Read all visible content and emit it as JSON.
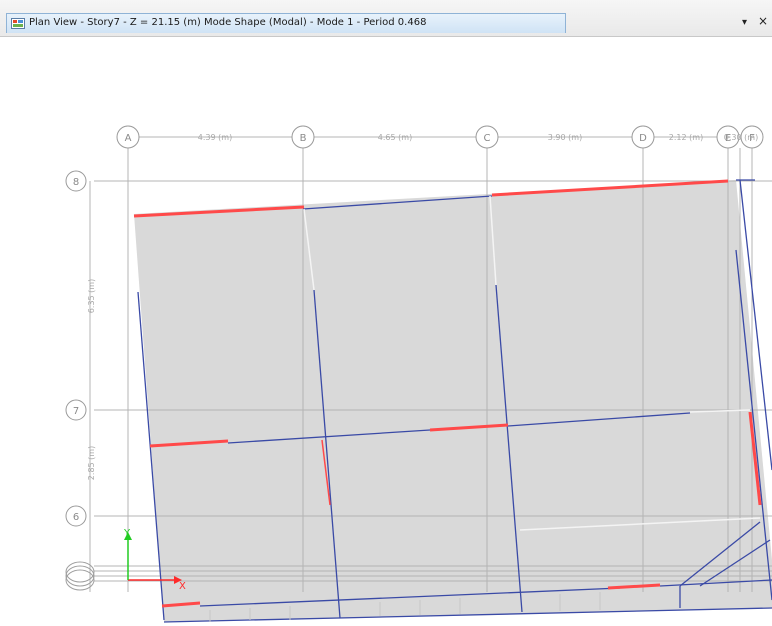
{
  "window": {
    "title": "Plan View - Story7 - Z = 21.15 (m)  Mode Shape (Modal) - Mode 1 - Period 0.468",
    "icon": "plan-view-icon",
    "dropdown_icon": "chevron-down-icon",
    "close_icon": "close-icon"
  },
  "grid": {
    "columns": [
      {
        "label": "A"
      },
      {
        "label": "B"
      },
      {
        "label": "C"
      },
      {
        "label": "D"
      },
      {
        "label": "E"
      },
      {
        "label": "F"
      }
    ],
    "rows": [
      {
        "label": "8"
      },
      {
        "label": "7"
      },
      {
        "label": "6"
      }
    ],
    "column_dimensions": [
      "4.39 (m)",
      "4.65 (m)",
      "3.90 (m)",
      "2.12 (m)",
      "0.30 (m)"
    ],
    "row_dimensions": [
      "6.35 (m)",
      "2.85 (m)"
    ]
  },
  "axes": {
    "x_label": "X",
    "y_label": "Y",
    "x_color": "#ff2a2a",
    "y_color": "#22cc22"
  },
  "colors": {
    "slab": "#d9d9d9",
    "beam": "#3a4aa6",
    "beam_stressed": "#ff4a4a",
    "grid": "#b4b4b4",
    "tab_border": "#8fb3d6"
  }
}
